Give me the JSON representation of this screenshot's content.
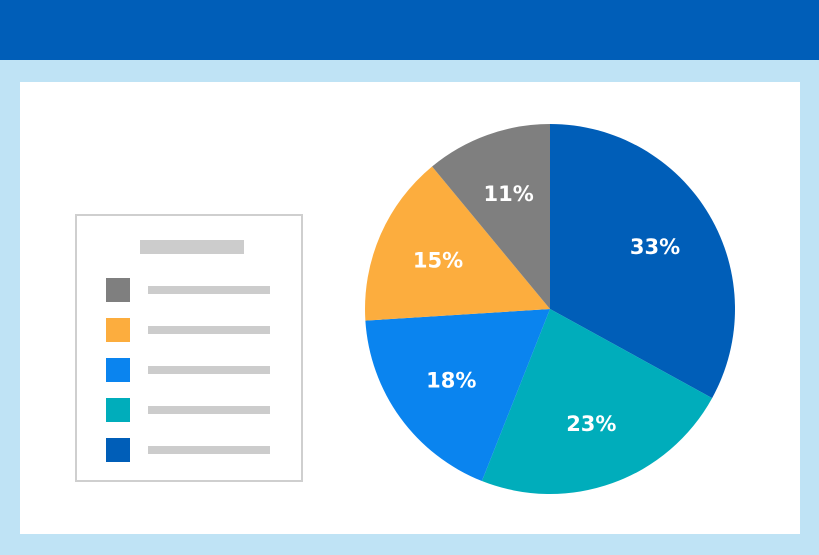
{
  "colors": {
    "header": "#005eb8",
    "page_background": "#bfe3f5",
    "card": "#ffffff",
    "legend_placeholder": "#cccccc"
  },
  "chart_data": {
    "type": "pie",
    "title": "",
    "legend_placement": "left",
    "start_angle_deg": 0,
    "direction": "clockwise",
    "slices": [
      {
        "value": 33,
        "label": "33%",
        "color": "#005eb8"
      },
      {
        "value": 23,
        "label": "23%",
        "color": "#00adbb"
      },
      {
        "value": 18,
        "label": "18%",
        "color": "#0a84ef"
      },
      {
        "value": 15,
        "label": "15%",
        "color": "#fcad3e"
      },
      {
        "value": 11,
        "label": "11%",
        "color": "#7f7f7f"
      }
    ],
    "legend_swatches": [
      "#7f7f7f",
      "#fcad3e",
      "#0a84ef",
      "#00adbb",
      "#005eb8"
    ]
  }
}
